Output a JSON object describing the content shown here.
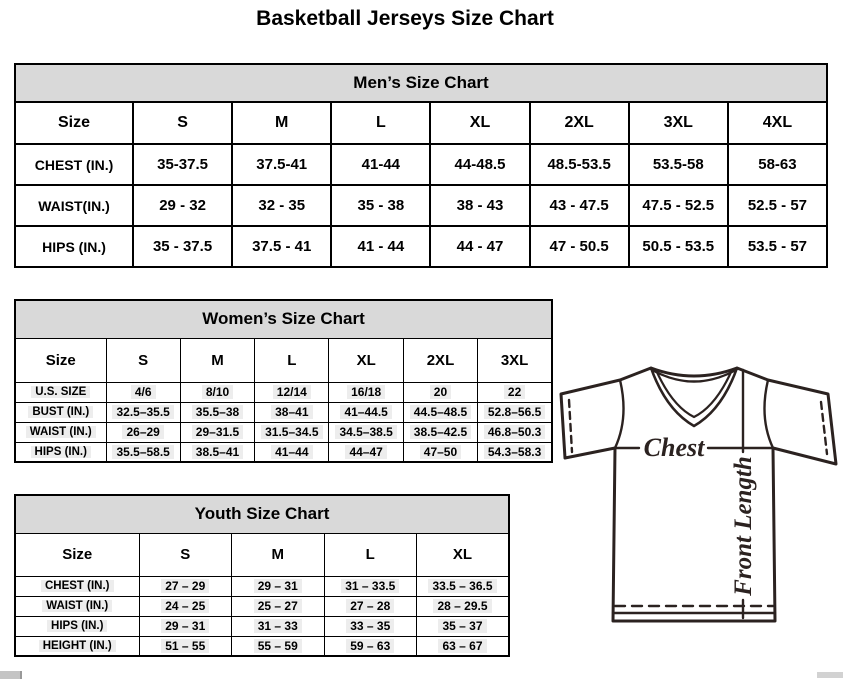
{
  "title": "Basketball Jerseys Size Chart",
  "colors": {
    "header_bg": "#d9d9d9",
    "table_border": "#000000",
    "diagram_ink": "#2b2220",
    "row_highlight": "#ededed",
    "scrollbar_gray": "#c4c4c4"
  },
  "tables": {
    "men": {
      "header": "Men’s Size Chart",
      "size_label": "Size",
      "columns": [
        "S",
        "M",
        "L",
        "XL",
        "2XL",
        "3XL",
        "4XL"
      ],
      "rows": [
        {
          "label": "CHEST (IN.)",
          "values": [
            "35-37.5",
            "37.5-41",
            "41-44",
            "44-48.5",
            "48.5-53.5",
            "53.5-58",
            "58-63"
          ]
        },
        {
          "label": "WAIST(IN.)",
          "values": [
            "29 - 32",
            "32 - 35",
            "35 - 38",
            "38 - 43",
            "43 - 47.5",
            "47.5 - 52.5",
            "52.5 - 57"
          ]
        },
        {
          "label": "HIPS (IN.)",
          "values": [
            "35 - 37.5",
            "37.5 - 41",
            "41 - 44",
            "44 - 47",
            "47 - 50.5",
            "50.5 - 53.5",
            "53.5 - 57"
          ]
        }
      ]
    },
    "women": {
      "header": "Women’s Size Chart",
      "size_label": "Size",
      "columns": [
        "S",
        "M",
        "L",
        "XL",
        "2XL",
        "3XL"
      ],
      "rows": [
        {
          "label": "U.S. SIZE",
          "values": [
            "4/6",
            "8/10",
            "12/14",
            "16/18",
            "20",
            "22"
          ]
        },
        {
          "label": "BUST (IN.)",
          "values": [
            "32.5–35.5",
            "35.5–38",
            "38–41",
            "41–44.5",
            "44.5–48.5",
            "52.8–56.5"
          ]
        },
        {
          "label": "WAIST (IN.)",
          "values": [
            "26–29",
            "29–31.5",
            "31.5–34.5",
            "34.5–38.5",
            "38.5–42.5",
            "46.8–50.3"
          ]
        },
        {
          "label": "HIPS (IN.)",
          "values": [
            "35.5–58.5",
            "38.5–41",
            "41–44",
            "44–47",
            "47–50",
            "54.3–58.3"
          ]
        }
      ]
    },
    "youth": {
      "header": "Youth Size Chart",
      "size_label": "Size",
      "columns": [
        "S",
        "M",
        "L",
        "XL"
      ],
      "rows": [
        {
          "label": "CHEST (IN.)",
          "values": [
            "27 – 29",
            "29 – 31",
            "31 – 33.5",
            "33.5 – 36.5"
          ]
        },
        {
          "label": "WAIST (IN.)",
          "values": [
            "24 – 25",
            "25 – 27",
            "27 – 28",
            "28 – 29.5"
          ]
        },
        {
          "label": "HIPS (IN.)",
          "values": [
            "29 – 31",
            "31 – 33",
            "33 – 35",
            "35 – 37"
          ]
        },
        {
          "label": "HEIGHT (IN.)",
          "values": [
            "51 – 55",
            "55 – 59",
            "59 – 63",
            "63 – 67"
          ]
        }
      ]
    }
  },
  "diagram": {
    "chest_label": "Chest",
    "front_length_label": "Front Length"
  }
}
